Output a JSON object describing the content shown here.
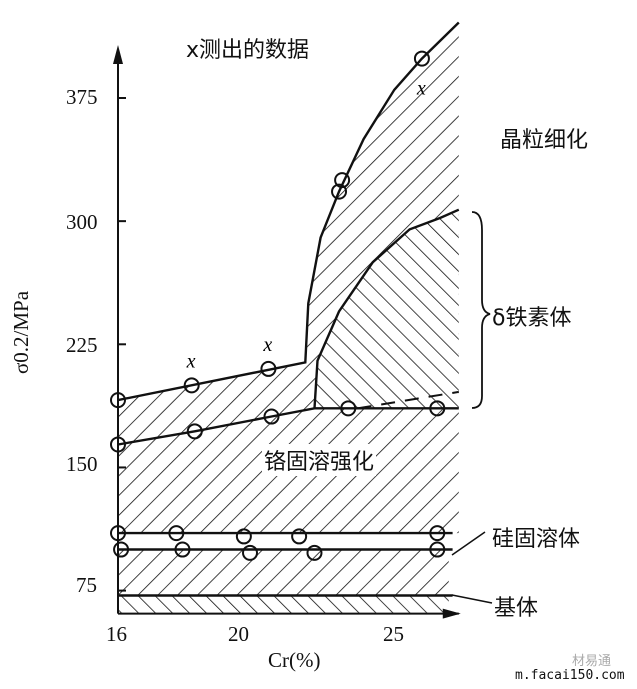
{
  "chart_data": {
    "type": "scatter",
    "title": "",
    "legend_note": "x测出的数据",
    "xlabel": "Cr(%)",
    "ylabel": "σ0.2/MPa",
    "xticks": [
      "16",
      "20",
      "25"
    ],
    "yticks": [
      "375",
      "300",
      "225",
      "150",
      "75"
    ],
    "xlim": [
      16,
      27.1
    ],
    "ylim": [
      61,
      420
    ],
    "grid": false,
    "regions": [
      {
        "label": "晶粒细化",
        "hatch": "/"
      },
      {
        "label": "δ铁素体",
        "hatch": "\\"
      },
      {
        "label": "铬固溶强化",
        "hatch": "/"
      },
      {
        "label": "硅固溶体",
        "hatch": "/"
      },
      {
        "label": "基体",
        "hatch": "\\"
      }
    ],
    "series": [
      {
        "id": "upper_line",
        "x": [
          16,
          18.4,
          20.9
        ],
        "y": [
          191,
          200,
          210
        ],
        "measured_x_marks": [
          18.4,
          20.9
        ]
      },
      {
        "id": "grain_refinement_curve",
        "x": [
          23.2,
          23.3,
          25.9
        ],
        "y": [
          318,
          325,
          399
        ],
        "measured_x_marks": [
          25.9
        ]
      },
      {
        "id": "lower_line",
        "x": [
          16,
          18.5,
          21,
          23.5,
          26.4
        ],
        "y": [
          164,
          172,
          181,
          186,
          186
        ]
      },
      {
        "id": "si_line_110",
        "x": [
          16,
          17.9,
          20.1,
          21.9,
          26.4
        ],
        "y": [
          110,
          110,
          108,
          108,
          110
        ]
      },
      {
        "id": "si_line_100",
        "x": [
          16.1,
          18.1,
          20.3,
          22.4,
          26.4
        ],
        "y": [
          100,
          100,
          98,
          98,
          100
        ]
      }
    ],
    "boundaries": {
      "upper_line_end": [
        22.1,
        214
      ],
      "top_curve": [
        [
          22.1,
          214
        ],
        [
          22.2,
          250
        ],
        [
          22.6,
          290
        ],
        [
          23.2,
          318
        ],
        [
          24,
          350
        ],
        [
          25,
          380
        ],
        [
          25.9,
          399
        ],
        [
          27.1,
          421
        ]
      ],
      "delta_curve": [
        [
          22.4,
          186
        ],
        [
          22.5,
          215
        ],
        [
          23.2,
          245
        ],
        [
          24.3,
          275
        ],
        [
          25.5,
          295
        ],
        [
          26.5,
          302
        ],
        [
          27.1,
          307
        ]
      ],
      "si_upper": 110,
      "si_lower": 100,
      "matrix_top": 72
    }
  },
  "watermark": {
    "brand": "材易通",
    "url": "m.facai150.com"
  }
}
